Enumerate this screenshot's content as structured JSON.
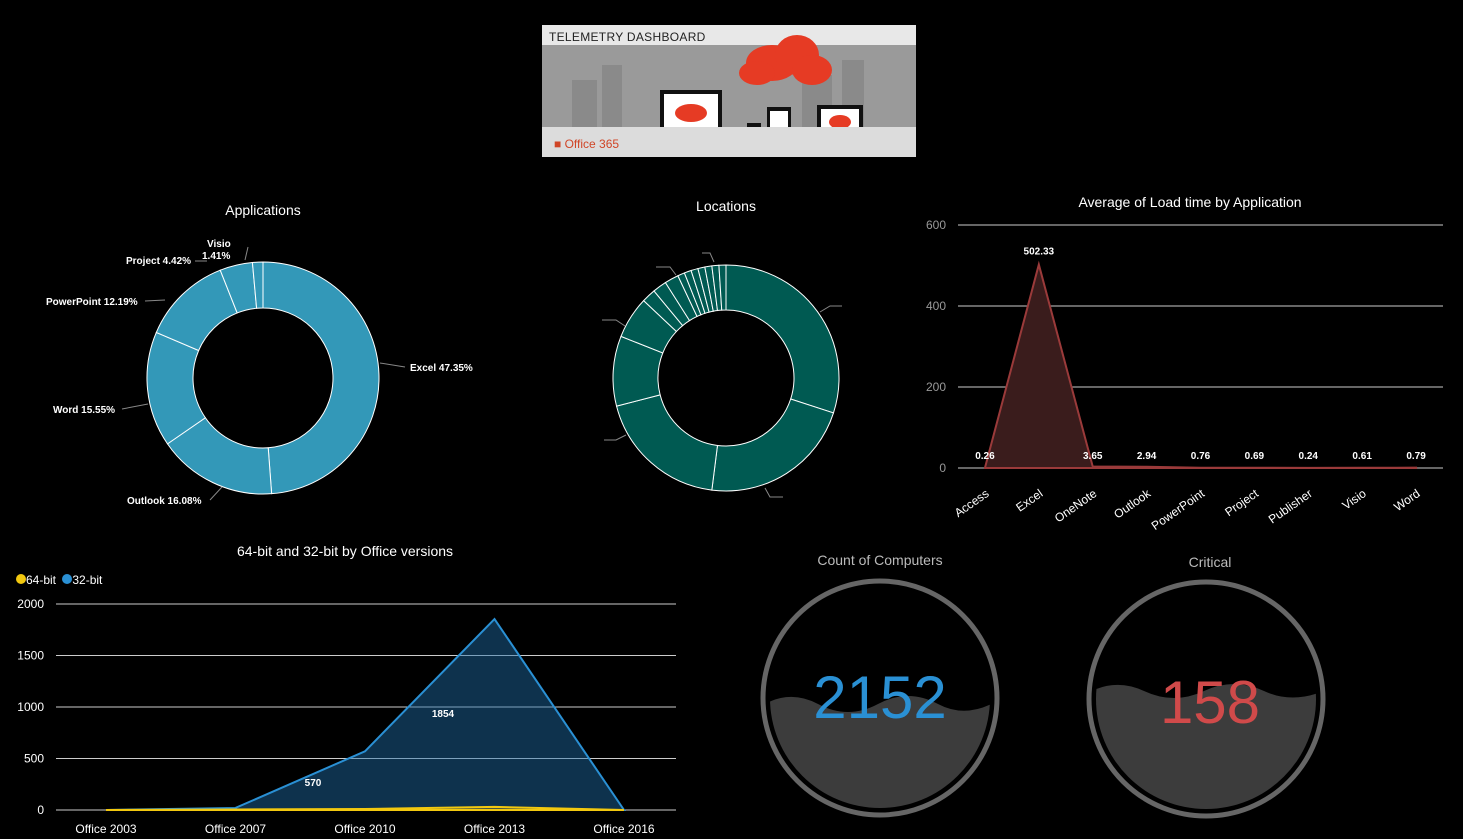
{
  "banner": {
    "title": "TELEMETRY DASHBOARD",
    "brand": "Office 365"
  },
  "applications": {
    "title": "Applications",
    "color": "#3398b8",
    "labels": [
      {
        "text": "Excel 47.35%"
      },
      {
        "text": "Outlook 16.08%"
      },
      {
        "text": "Word 15.55%"
      },
      {
        "text": "PowerPoint 12.19%"
      },
      {
        "text": "Project 4.42%"
      },
      {
        "text": "Visio"
      },
      {
        "text": "1.41%"
      }
    ]
  },
  "locations": {
    "title": "Locations",
    "color": "#005a52"
  },
  "load_time": {
    "title": "Average of Load time by Application"
  },
  "office_versions": {
    "title": "64-bit and 32-bit by Office versions",
    "legend": [
      {
        "label": "64-bit",
        "color": "#f2c80f"
      },
      {
        "label": "32-bit",
        "color": "#2a90d4"
      }
    ]
  },
  "kpi_computers": {
    "title": "Count of Computers",
    "value": "2152",
    "color": "#2a90d4"
  },
  "kpi_critical": {
    "title": "Critical",
    "value": "158",
    "color": "#d04a4a"
  },
  "chart_data": [
    {
      "type": "pie",
      "title": "Applications",
      "categories": [
        "Excel",
        "Outlook",
        "Word",
        "PowerPoint",
        "Project",
        "Visio"
      ],
      "values": [
        47.35,
        16.08,
        15.55,
        12.19,
        4.42,
        1.41
      ]
    },
    {
      "type": "pie",
      "title": "Locations",
      "values": [
        30,
        22,
        19,
        10,
        6,
        2,
        2,
        2,
        1,
        1,
        1,
        1,
        1,
        1,
        1
      ]
    },
    {
      "type": "area",
      "title": "Average of Load time by Application",
      "categories": [
        "Access",
        "Excel",
        "OneNote",
        "Outlook",
        "PowerPoint",
        "Project",
        "Publisher",
        "Visio",
        "Word"
      ],
      "values": [
        0.26,
        502.33,
        3.65,
        2.94,
        0.76,
        0.69,
        0.24,
        0.61,
        0.79
      ],
      "ylim": [
        0,
        600
      ],
      "yticks": [
        0,
        200,
        400,
        600
      ],
      "data_labels": [
        "0.26",
        "502.33",
        "3.65",
        "2.94",
        "0.76",
        "0.69",
        "0.24",
        "0.61",
        "0.79"
      ]
    },
    {
      "type": "area",
      "title": "64-bit and 32-bit by Office versions",
      "categories": [
        "Office 2003",
        "Office 2007",
        "Office 2010",
        "Office 2013",
        "Office 2016"
      ],
      "series": [
        {
          "name": "64-bit",
          "values": [
            0,
            5,
            10,
            30,
            0
          ]
        },
        {
          "name": "32-bit",
          "values": [
            0,
            20,
            570,
            1854,
            0
          ]
        }
      ],
      "ylim": [
        0,
        2000
      ],
      "yticks": [
        0,
        500,
        1000,
        1500,
        2000
      ],
      "data_labels": [
        {
          "series": "32-bit",
          "index": 2,
          "text": "570"
        },
        {
          "series": "32-bit",
          "index": 3,
          "text": "1854"
        }
      ],
      "legend": "top-left"
    }
  ]
}
